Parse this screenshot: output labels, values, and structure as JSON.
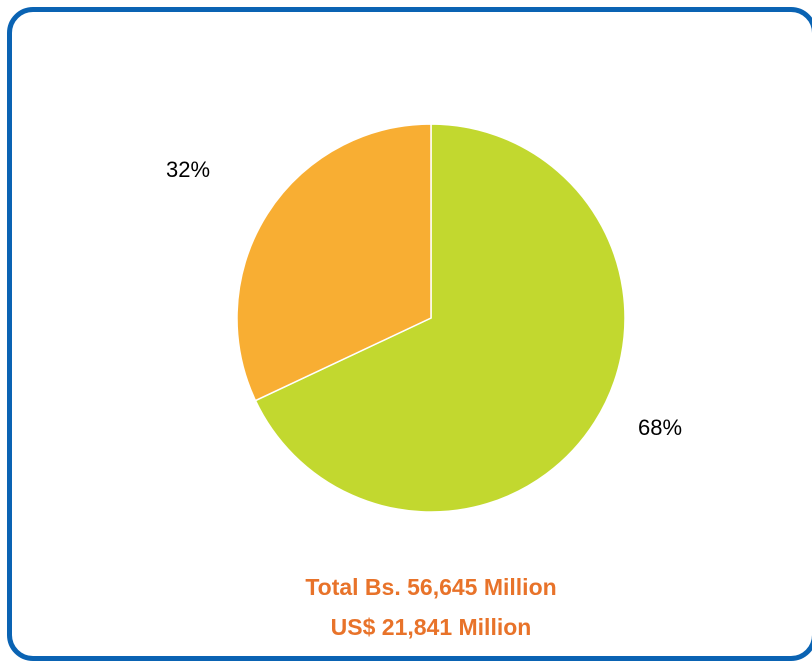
{
  "chart_data": {
    "type": "pie",
    "slices": [
      {
        "label": "68%",
        "value": 68,
        "color": "#c2d82f"
      },
      {
        "label": "32%",
        "value": 32,
        "color": "#f8ae33"
      }
    ],
    "title": "",
    "total_lines": [
      "Total Bs. 56,645 Million",
      "US$ 21,841 Million"
    ]
  },
  "colors": {
    "frame_border": "#0a63b3",
    "total_text": "#e8732a",
    "slice_separator": "#ffffff"
  }
}
